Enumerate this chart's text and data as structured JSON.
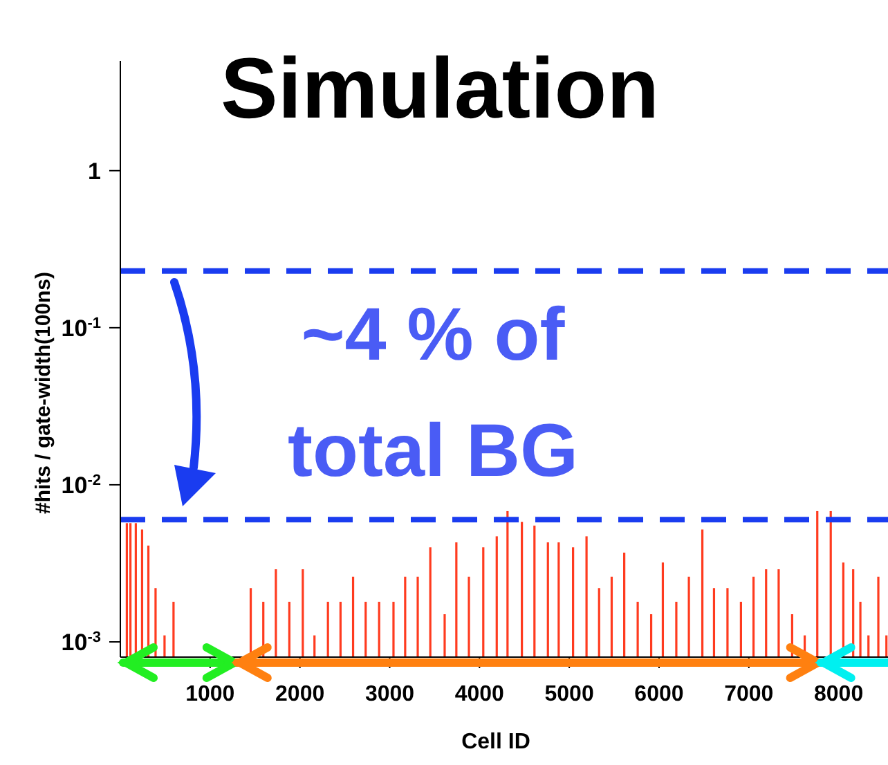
{
  "chart_data": {
    "type": "bar",
    "title": "Simulation",
    "xlabel": "Cell ID",
    "ylabel": "#hits / gate-width(100ns)",
    "annotations": [
      "~4 % of total BG"
    ],
    "x": [
      80,
      120,
      180,
      250,
      320,
      400,
      500,
      600,
      1460,
      1600,
      1740,
      1890,
      2040,
      2170,
      2320,
      2460,
      2600,
      2740,
      2890,
      3050,
      3180,
      3320,
      3460,
      3620,
      3750,
      3890,
      4050,
      4200,
      4320,
      4480,
      4620,
      4770,
      4890,
      5050,
      5200,
      5340,
      5480,
      5620,
      5770,
      5920,
      6050,
      6200,
      6340,
      6490,
      6620,
      6770,
      6920,
      7060,
      7200,
      7340,
      7490,
      7630,
      7770,
      7920,
      8060,
      8170,
      8250,
      8340,
      8450,
      8540
    ],
    "values": [
      0.0057,
      0.0057,
      0.0057,
      0.0052,
      0.0041,
      0.0022,
      0.0011,
      0.0018,
      0.0022,
      0.0018,
      0.0029,
      0.0018,
      0.0029,
      0.0011,
      0.0018,
      0.0018,
      0.0026,
      0.0018,
      0.0018,
      0.0018,
      0.0026,
      0.0026,
      0.004,
      0.0015,
      0.0043,
      0.0026,
      0.004,
      0.0047,
      0.0068,
      0.0058,
      0.0055,
      0.0043,
      0.0043,
      0.004,
      0.0047,
      0.0022,
      0.0026,
      0.0037,
      0.0018,
      0.0015,
      0.0032,
      0.0018,
      0.0026,
      0.0052,
      0.0022,
      0.0022,
      0.0018,
      0.0026,
      0.0029,
      0.0029,
      0.0015,
      0.0011,
      0.0068,
      0.0068,
      0.0032,
      0.0029,
      0.0018,
      0.0011,
      0.0026,
      0.0011
    ],
    "color": "#ff3b1f",
    "log": "y",
    "xlim": [
      0,
      8550
    ],
    "xticks": [
      1000,
      2000,
      3000,
      4000,
      5000,
      6000,
      7000,
      8000
    ],
    "ylim": [
      0.0008,
      5
    ],
    "yticks": [
      {
        "value": 0.001,
        "label": "10$^{-3}$"
      },
      {
        "value": 0.01,
        "label": "10$^{-2}$"
      },
      {
        "value": 0.1,
        "label": "10$^{-1}$"
      },
      1
    ],
    "ref_lines": [
      {
        "axis": "y",
        "value": 0.23,
        "color": "#1a3cf0",
        "line_style": "dashed"
      },
      {
        "axis": "y",
        "value": 0.006,
        "color": "#1a3cf0",
        "line_style": "dashed"
      }
    ]
  }
}
